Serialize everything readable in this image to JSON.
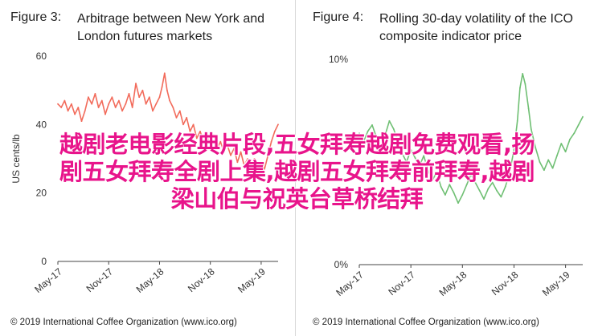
{
  "chart_data": [
    {
      "type": "line",
      "figure_label": "Figure 3:",
      "title_lines": [
        "Arbitrage between New York and",
        "London futures markets"
      ],
      "ylabel": "US cents/lb",
      "yticks": [
        "0",
        "20",
        "40",
        "60"
      ],
      "ylim": [
        0,
        60
      ],
      "xticks": [
        "May-17",
        "Nov-17",
        "May-18",
        "Nov-18",
        "May-19"
      ],
      "x_range_months": 26,
      "grid": false,
      "line_color": "#f26b5b",
      "copyright": "© 2019 International Coffee Organization (www.ico.org)",
      "series": [
        {
          "values": [
            [
              0.0,
              46
            ],
            [
              0.4,
              45
            ],
            [
              0.8,
              47
            ],
            [
              1.2,
              44
            ],
            [
              1.6,
              46
            ],
            [
              2.0,
              43
            ],
            [
              2.4,
              45
            ],
            [
              2.8,
              41
            ],
            [
              3.2,
              44
            ],
            [
              3.6,
              48
            ],
            [
              4.0,
              46
            ],
            [
              4.4,
              49
            ],
            [
              4.8,
              45
            ],
            [
              5.2,
              47
            ],
            [
              5.6,
              43
            ],
            [
              6.0,
              46
            ],
            [
              6.4,
              48
            ],
            [
              6.8,
              45
            ],
            [
              7.2,
              47
            ],
            [
              7.6,
              44
            ],
            [
              8.0,
              46
            ],
            [
              8.4,
              49
            ],
            [
              8.8,
              45
            ],
            [
              9.2,
              52
            ],
            [
              9.6,
              48
            ],
            [
              10.0,
              50
            ],
            [
              10.4,
              46
            ],
            [
              10.8,
              48
            ],
            [
              11.2,
              44
            ],
            [
              11.6,
              46
            ],
            [
              12.0,
              48
            ],
            [
              12.3,
              51
            ],
            [
              12.6,
              55
            ],
            [
              12.9,
              50
            ],
            [
              13.2,
              47
            ],
            [
              13.6,
              45
            ],
            [
              14.0,
              42
            ],
            [
              14.4,
              44
            ],
            [
              14.8,
              40
            ],
            [
              15.2,
              42
            ],
            [
              15.6,
              38
            ],
            [
              16.0,
              40
            ],
            [
              16.4,
              36
            ],
            [
              16.8,
              38
            ],
            [
              17.2,
              35
            ],
            [
              17.6,
              37
            ],
            [
              18.0,
              34
            ],
            [
              18.4,
              37
            ],
            [
              18.8,
              33
            ],
            [
              19.2,
              35
            ],
            [
              19.6,
              32
            ],
            [
              20.0,
              34
            ],
            [
              20.4,
              31
            ],
            [
              20.8,
              33
            ],
            [
              21.2,
              29
            ],
            [
              21.6,
              32
            ],
            [
              22.0,
              28
            ],
            [
              22.4,
              30
            ],
            [
              22.8,
              27
            ],
            [
              23.2,
              30
            ],
            [
              23.6,
              26
            ],
            [
              24.0,
              29
            ],
            [
              24.4,
              27
            ],
            [
              24.8,
              31
            ],
            [
              25.2,
              35
            ],
            [
              25.6,
              38
            ],
            [
              26.0,
              40
            ]
          ]
        }
      ]
    },
    {
      "type": "line",
      "figure_label": "Figure 4:",
      "title_lines": [
        "Rolling 30-day volatility of the ICO",
        "composite indicator price"
      ],
      "ylabel": "",
      "yticks": [
        "0%",
        "10%"
      ],
      "ylim": [
        0,
        10
      ],
      "xticks": [
        "May-17",
        "Nov-17",
        "May-18",
        "Nov-18",
        "May-19"
      ],
      "x_range_months": 26,
      "grid": false,
      "line_color": "#6fbf73",
      "copyright": "© 2019 International Coffee Organization (www.ico.org)",
      "series": [
        {
          "values": [
            [
              0.0,
              6.4
            ],
            [
              0.5,
              6.0
            ],
            [
              1.0,
              6.5
            ],
            [
              1.5,
              6.8
            ],
            [
              2.0,
              6.2
            ],
            [
              2.5,
              5.6
            ],
            [
              3.0,
              6.3
            ],
            [
              3.5,
              7.0
            ],
            [
              4.0,
              6.6
            ],
            [
              4.5,
              6.0
            ],
            [
              5.0,
              5.4
            ],
            [
              5.5,
              5.0
            ],
            [
              6.0,
              5.6
            ],
            [
              6.5,
              5.2
            ],
            [
              7.0,
              4.8
            ],
            [
              7.5,
              5.3
            ],
            [
              8.0,
              4.6
            ],
            [
              8.5,
              4.1
            ],
            [
              9.0,
              4.5
            ],
            [
              9.5,
              3.8
            ],
            [
              10.0,
              3.4
            ],
            [
              10.5,
              3.9
            ],
            [
              11.0,
              3.5
            ],
            [
              11.5,
              3.0
            ],
            [
              12.0,
              3.4
            ],
            [
              12.5,
              3.9
            ],
            [
              13.0,
              4.4
            ],
            [
              13.5,
              4.0
            ],
            [
              14.0,
              3.6
            ],
            [
              14.5,
              3.2
            ],
            [
              15.0,
              3.7
            ],
            [
              15.5,
              4.0
            ],
            [
              16.0,
              3.6
            ],
            [
              16.5,
              3.3
            ],
            [
              17.0,
              3.8
            ],
            [
              17.5,
              4.5
            ],
            [
              18.0,
              5.6
            ],
            [
              18.4,
              7.0
            ],
            [
              18.7,
              8.6
            ],
            [
              19.0,
              9.3
            ],
            [
              19.3,
              8.8
            ],
            [
              19.7,
              7.6
            ],
            [
              20.0,
              6.6
            ],
            [
              20.5,
              5.7
            ],
            [
              21.0,
              5.0
            ],
            [
              21.5,
              4.6
            ],
            [
              22.0,
              5.1
            ],
            [
              22.5,
              4.7
            ],
            [
              23.0,
              5.3
            ],
            [
              23.5,
              5.9
            ],
            [
              24.0,
              5.5
            ],
            [
              24.5,
              6.1
            ],
            [
              25.0,
              6.4
            ],
            [
              25.5,
              6.8
            ],
            [
              26.0,
              7.2
            ]
          ]
        }
      ]
    }
  ],
  "overlay_text": [
    "越剧老电影经典片段,五女拜寿越剧免费观看,扬",
    "剧五女拜寿全剧上集,越剧五女拜寿前拜寿,越剧",
    "梁山伯与祝英台草桥结拜"
  ]
}
